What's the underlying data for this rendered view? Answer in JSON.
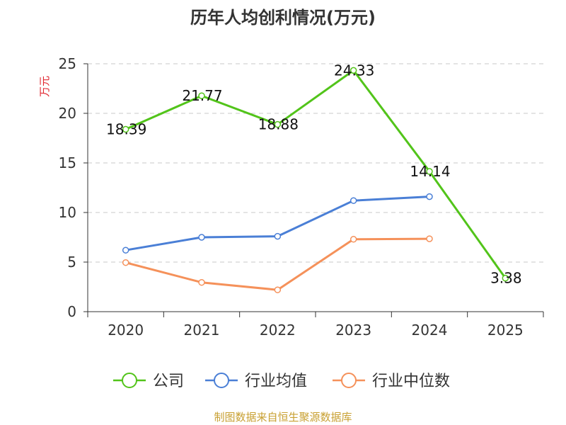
{
  "chart_data": {
    "type": "line",
    "title": "历年人均创利情况(万元)",
    "ylabel": "万元",
    "xlabel": "",
    "categories": [
      "2020",
      "2021",
      "2022",
      "2023",
      "2024",
      "2025"
    ],
    "ylim": [
      0,
      25
    ],
    "yticks": [
      0,
      5,
      10,
      15,
      20,
      25
    ],
    "grid": true,
    "legend_position": "bottom",
    "series": [
      {
        "name": "公司",
        "color": "#52c41a",
        "values": [
          18.39,
          21.77,
          18.88,
          24.33,
          14.14,
          3.38
        ],
        "labels": [
          "18.39",
          "21.77",
          "18.88",
          "24.33",
          "14.14",
          "3.38"
        ]
      },
      {
        "name": "行业均值",
        "color": "#4a7fd6",
        "values": [
          6.2,
          7.5,
          7.6,
          11.2,
          11.6,
          null
        ]
      },
      {
        "name": "行业中位数",
        "color": "#f5915a",
        "values": [
          4.95,
          2.95,
          2.2,
          7.3,
          7.35,
          null
        ]
      }
    ]
  },
  "source": "制图数据来自恒生聚源数据库"
}
